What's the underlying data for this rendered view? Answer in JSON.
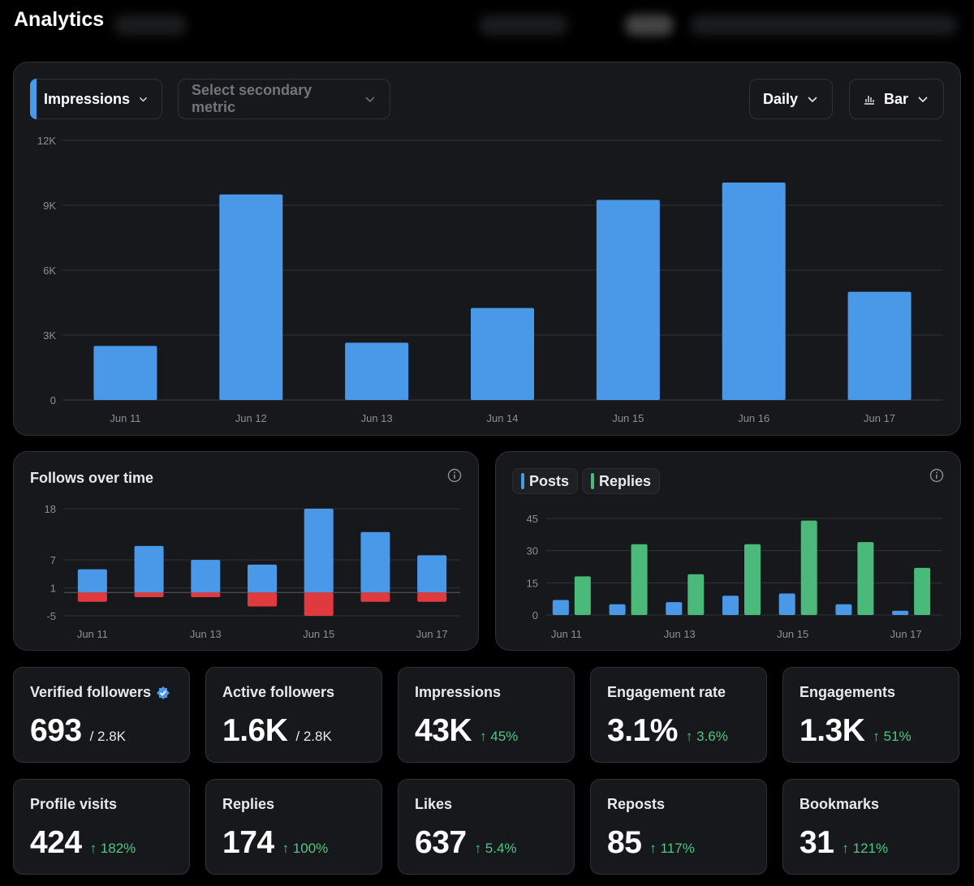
{
  "header": {
    "title": "Analytics"
  },
  "main_chart": {
    "primary_metric": "Impressions",
    "secondary_metric_placeholder": "Select secondary metric",
    "interval": "Daily",
    "chart_type_label": "Bar",
    "accent_color": "#4a99e9"
  },
  "follows_card": {
    "title": "Follows over time"
  },
  "posts_card": {
    "legend": {
      "posts": "Posts",
      "replies": "Replies"
    },
    "posts_color": "#4a99e9",
    "replies_color": "#4ab97a"
  },
  "stats": [
    {
      "label": "Verified followers",
      "value": "693",
      "sub": "/ 2.8K",
      "verified_icon": "verified-badge-icon"
    },
    {
      "label": "Active followers",
      "value": "1.6K",
      "sub": "/ 2.8K"
    },
    {
      "label": "Impressions",
      "value": "43K",
      "change": "↑ 45%"
    },
    {
      "label": "Engagement rate",
      "value": "3.1%",
      "change": "↑ 3.6%"
    },
    {
      "label": "Engagements",
      "value": "1.3K",
      "change": "↑ 51%"
    },
    {
      "label": "Profile visits",
      "value": "424",
      "change": "↑ 182%"
    },
    {
      "label": "Replies",
      "value": "174",
      "change": "↑ 100%"
    },
    {
      "label": "Likes",
      "value": "637",
      "change": "↑ 5.4%"
    },
    {
      "label": "Reposts",
      "value": "85",
      "change": "↑ 117%"
    },
    {
      "label": "Bookmarks",
      "value": "31",
      "change": "↑ 121%"
    }
  ],
  "chart_data": [
    {
      "type": "bar",
      "categories": [
        "Jun 11",
        "Jun 12",
        "Jun 13",
        "Jun 14",
        "Jun 15",
        "Jun 16",
        "Jun 17"
      ],
      "series": [
        {
          "values": [
            2500,
            9500,
            2650,
            4250,
            9250,
            10050,
            5000
          ]
        }
      ],
      "yticks": [
        0,
        3000,
        6000,
        9000,
        12000
      ],
      "ytick_labels": [
        "0",
        "3K",
        "6K",
        "9K",
        "12K"
      ],
      "ylim": [
        0,
        12000
      ],
      "color": "#4a99e9"
    },
    {
      "type": "bar",
      "title": "Follows over time",
      "categories": [
        "Jun 11",
        "Jun 12",
        "Jun 13",
        "Jun 14",
        "Jun 15",
        "Jun 16",
        "Jun 17"
      ],
      "xtick_labels": [
        "Jun 11",
        "",
        "Jun 13",
        "",
        "Jun 15",
        "",
        "Jun 17"
      ],
      "series": [
        {
          "values": [
            5,
            10,
            7,
            6,
            18,
            13,
            8
          ],
          "color": "#4a99e9"
        },
        {
          "values": [
            -2,
            -1,
            -1,
            -3,
            -5,
            -2,
            -2
          ],
          "color": "#e0393e"
        }
      ],
      "yticks": [
        -5,
        1,
        7,
        18
      ],
      "ylim": [
        -5,
        18
      ]
    },
    {
      "type": "bar",
      "categories": [
        "Jun 11",
        "Jun 12",
        "Jun 13",
        "Jun 14",
        "Jun 15",
        "Jun 16",
        "Jun 17"
      ],
      "xtick_labels": [
        "Jun 11",
        "",
        "Jun 13",
        "",
        "Jun 15",
        "",
        "Jun 17"
      ],
      "series": [
        {
          "name": "Posts",
          "values": [
            7,
            5,
            6,
            9,
            10,
            5,
            2
          ],
          "color": "#4a99e9"
        },
        {
          "name": "Replies",
          "values": [
            18,
            33,
            19,
            33,
            44,
            34,
            22
          ],
          "color": "#4ab97a"
        }
      ],
      "yticks": [
        0,
        15,
        30,
        45
      ],
      "ylim": [
        0,
        45
      ]
    }
  ]
}
